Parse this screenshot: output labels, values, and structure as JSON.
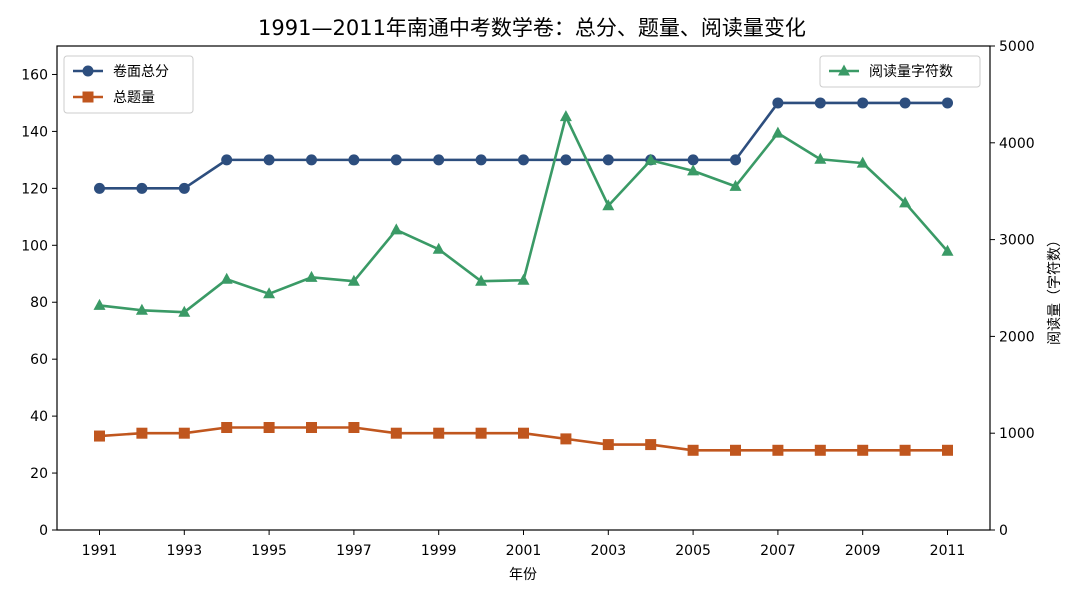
{
  "chart_data": {
    "type": "line",
    "title": "1991—2011年南通中考数学卷：总分、题量、阅读量变化",
    "xlabel": "年份",
    "ylabel_left": "",
    "ylabel_right": "阅读量（字符数）",
    "x": [
      1991,
      1992,
      1993,
      1994,
      1995,
      1996,
      1997,
      1998,
      1999,
      2000,
      2001,
      2002,
      2003,
      2004,
      2005,
      2006,
      2007,
      2008,
      2009,
      2010,
      2011
    ],
    "x_ticks": [
      "1991",
      "1993",
      "1995",
      "1997",
      "1999",
      "2001",
      "2003",
      "2005",
      "2007",
      "2009",
      "2011"
    ],
    "ylim_left": [
      0,
      170
    ],
    "y_ticks_left": [
      "0",
      "20",
      "40",
      "60",
      "80",
      "100",
      "120",
      "140",
      "160"
    ],
    "ylim_right": [
      0,
      5000
    ],
    "y_ticks_right": [
      "0",
      "1000",
      "2000",
      "3000",
      "4000",
      "5000"
    ],
    "grid": false,
    "series": [
      {
        "name": "卷面总分",
        "axis": "left",
        "color": "#2d4e7e",
        "marker": "circle",
        "values": [
          120,
          120,
          120,
          130,
          130,
          130,
          130,
          130,
          130,
          130,
          130,
          130,
          130,
          130,
          130,
          130,
          150,
          150,
          150,
          150,
          150
        ]
      },
      {
        "name": "总题量",
        "axis": "left",
        "color": "#c0561e",
        "marker": "square",
        "values": [
          33,
          34,
          34,
          36,
          36,
          36,
          36,
          34,
          34,
          34,
          34,
          32,
          30,
          30,
          28,
          28,
          28,
          28,
          28,
          28,
          28
        ]
      },
      {
        "name": "阅读量字符数",
        "axis": "right",
        "color": "#3a9a66",
        "marker": "triangle",
        "values": [
          2320,
          2270,
          2250,
          2590,
          2440,
          2610,
          2570,
          3100,
          2900,
          2570,
          2580,
          4270,
          3350,
          3820,
          3710,
          3550,
          4100,
          3830,
          3790,
          3380,
          2880
        ]
      }
    ],
    "legend_left": {
      "placement": "top-left",
      "entries": [
        "卷面总分",
        "总题量"
      ]
    },
    "legend_right": {
      "placement": "top-right",
      "entries": [
        "阅读量字符数"
      ]
    }
  }
}
